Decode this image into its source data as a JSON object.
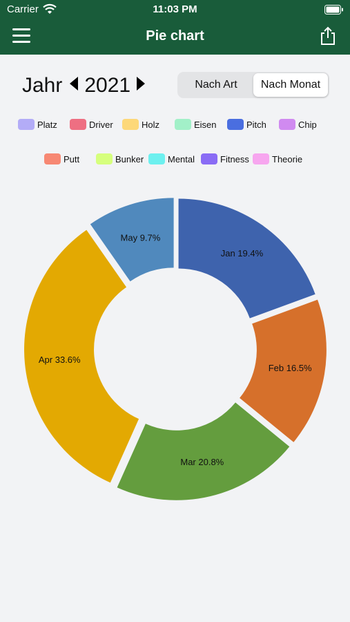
{
  "status_bar": {
    "carrier": "Carrier",
    "time": "11:03 PM"
  },
  "nav": {
    "title": "Pie chart"
  },
  "year_selector": {
    "label": "Jahr",
    "year": "2021"
  },
  "segmented": {
    "options": [
      "Nach Art",
      "Nach Monat"
    ],
    "selected": "Nach Monat"
  },
  "legend": [
    {
      "label": "Platz",
      "color": "#b3acf7"
    },
    {
      "label": "Driver",
      "color": "#ee6f82"
    },
    {
      "label": "Holz",
      "color": "#fdd879"
    },
    {
      "label": "Eisen",
      "color": "#a2f0c8"
    },
    {
      "label": "Pitch",
      "color": "#4a6ee0"
    },
    {
      "label": "Chip",
      "color": "#d08af0"
    },
    {
      "label": "Putt",
      "color": "#f78873"
    },
    {
      "label": "Bunker",
      "color": "#d6ff7d"
    },
    {
      "label": "Mental",
      "color": "#6df0ef"
    },
    {
      "label": "Fitness",
      "color": "#8a6cf5"
    },
    {
      "label": "Theorie",
      "color": "#f7a6ef"
    }
  ],
  "chart_data": {
    "type": "pie",
    "categories": [
      "Jan",
      "Feb",
      "Mar",
      "Apr",
      "May"
    ],
    "values": [
      19.4,
      16.5,
      20.8,
      33.6,
      9.7
    ],
    "labels": [
      "Jan 19.4%",
      "Feb 16.5%",
      "Mar 20.8%",
      "Apr 33.6%",
      "May 9.7%"
    ],
    "colors": [
      "#3e63ad",
      "#d6702b",
      "#649d3e",
      "#e3a902",
      "#5089bd"
    ],
    "donut": true,
    "title": "",
    "legend": "none"
  }
}
